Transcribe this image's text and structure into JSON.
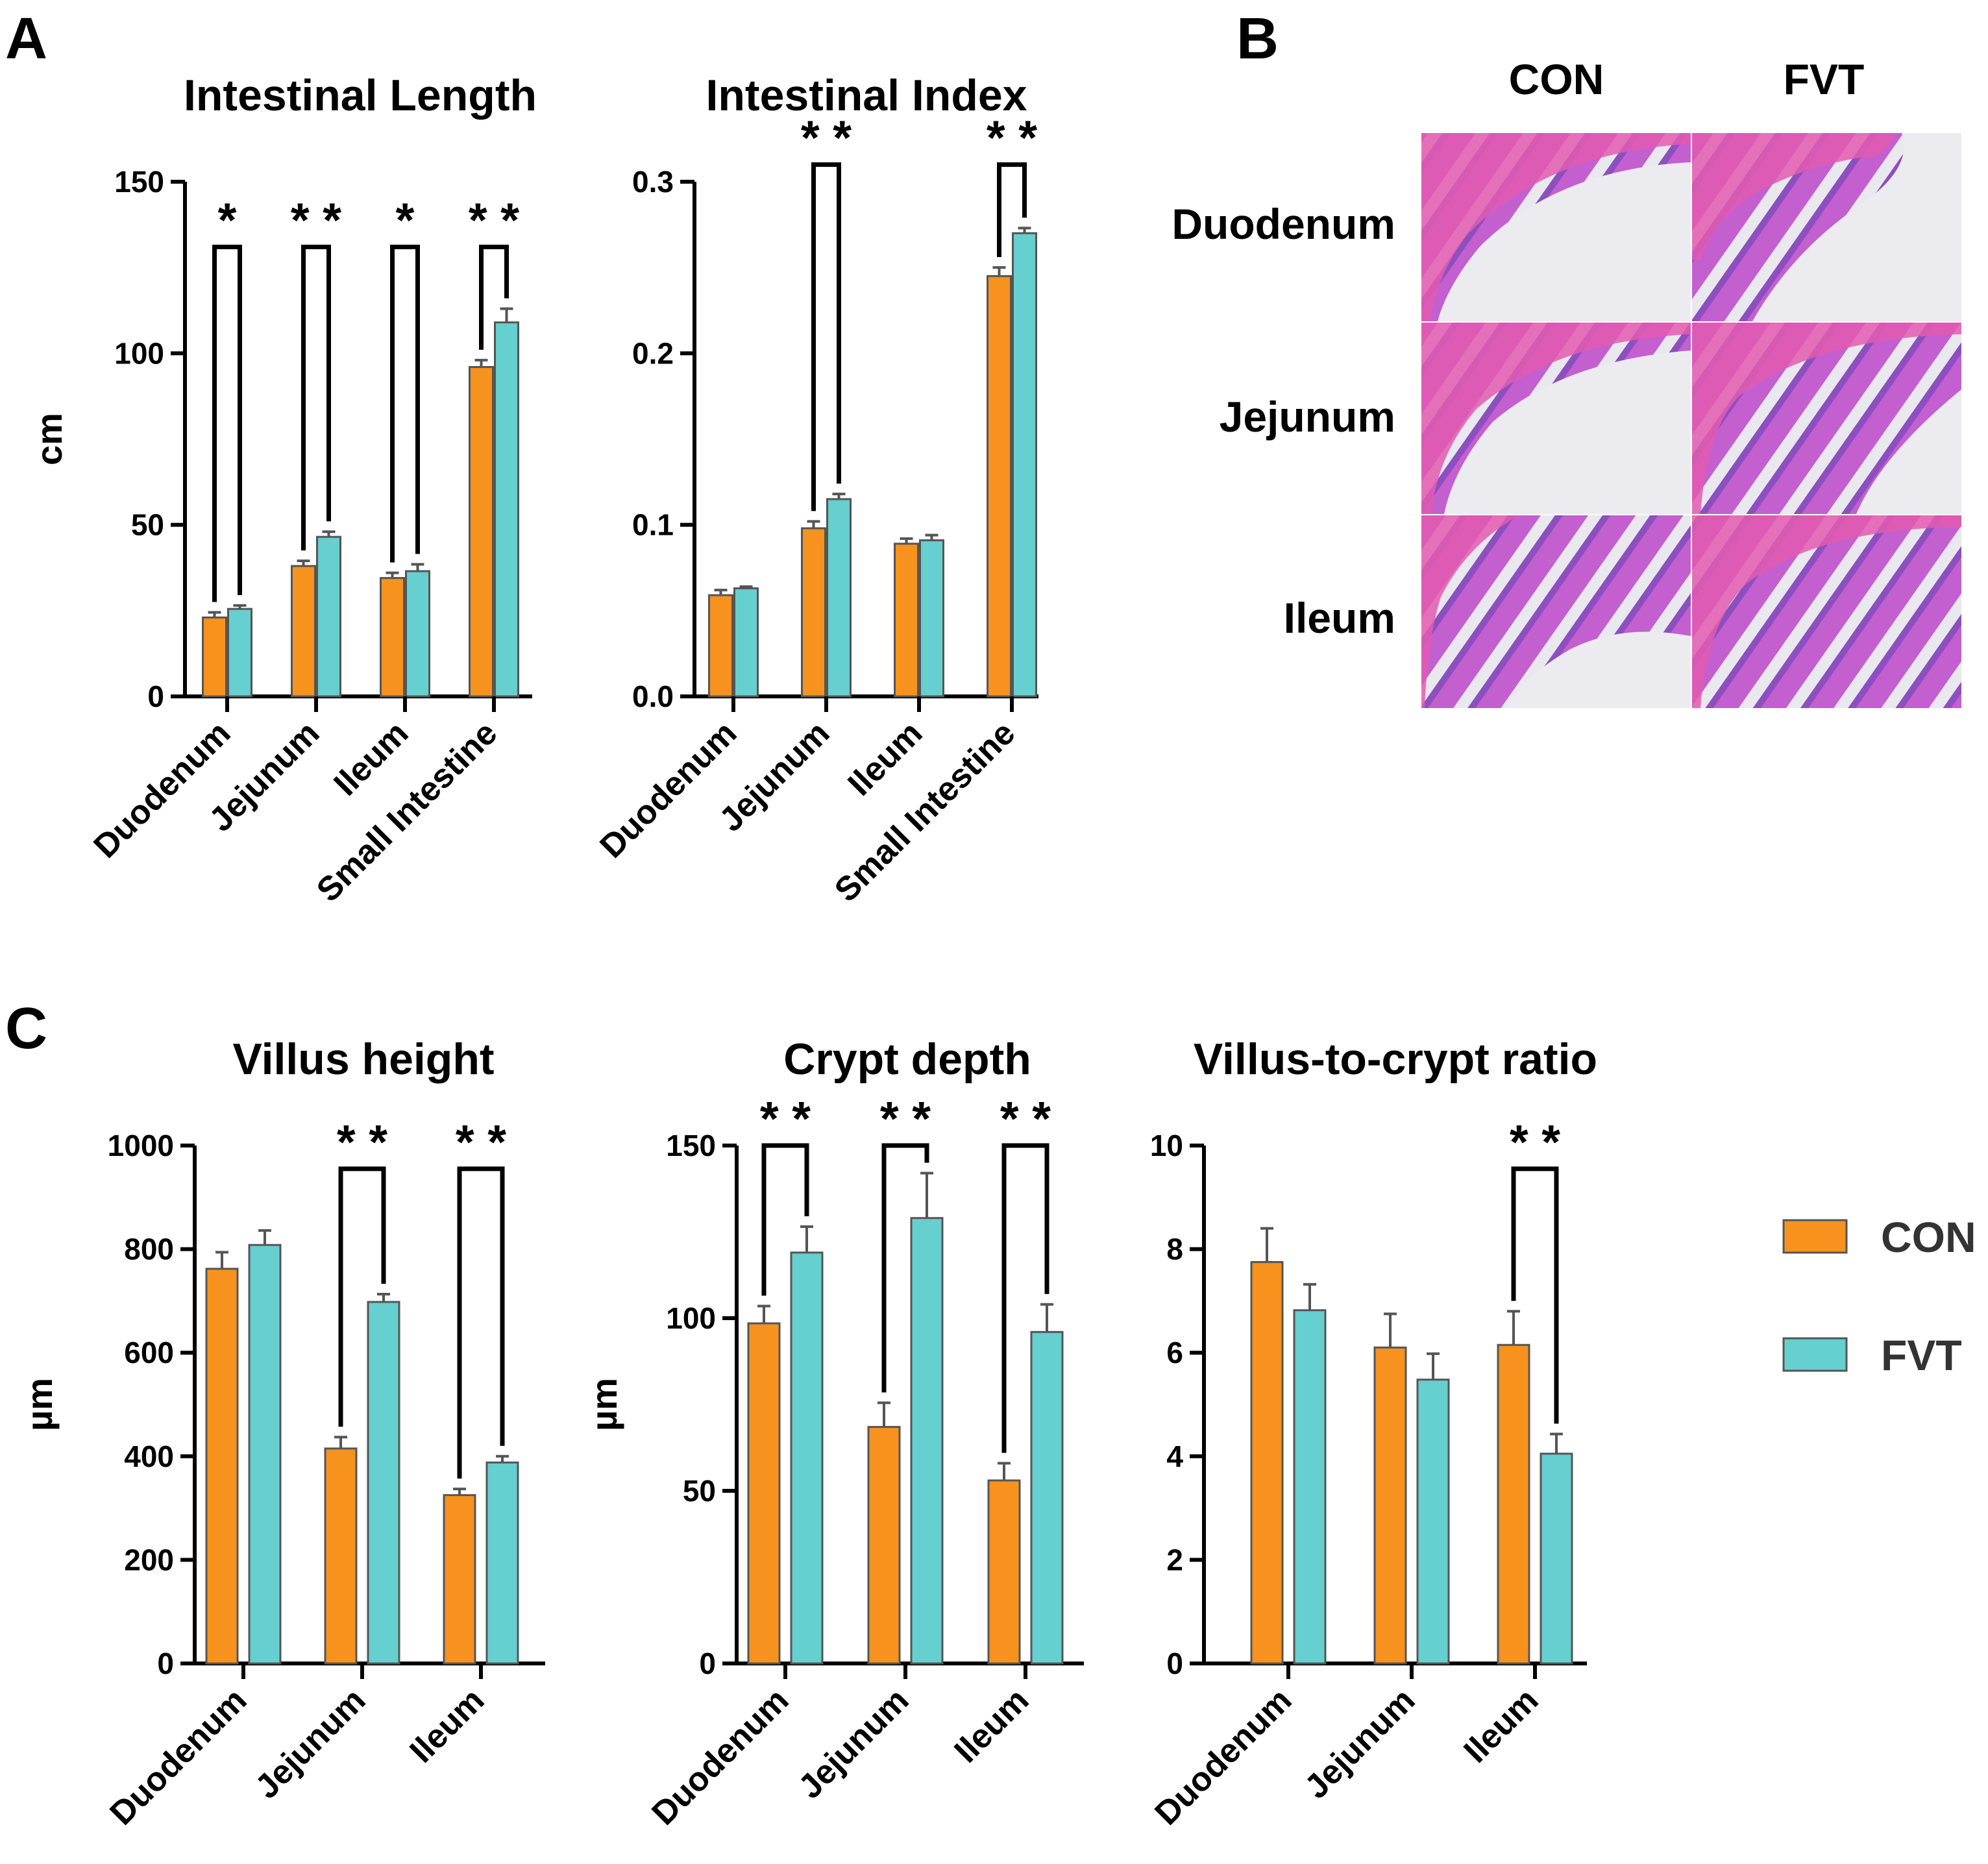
{
  "colors": {
    "con": "#f7921e",
    "fvt": "#66cfcf",
    "con_stroke": "#555555",
    "fvt_stroke": "#555555",
    "err": "#555555"
  },
  "panels": {
    "a": "A",
    "b": "B",
    "c": "C"
  },
  "legend": [
    {
      "label": "CON",
      "color": "#f7921e"
    },
    {
      "label": "FVT",
      "color": "#66cfcf"
    }
  ],
  "histology": {
    "columns": [
      "CON",
      "FVT"
    ],
    "rows": [
      "Duodenum",
      "Jejunum",
      "Ileum"
    ]
  },
  "chart_data": [
    {
      "id": "len",
      "type": "bar",
      "title": "Intestinal Length",
      "ylabel": "cm",
      "ylim": [
        0,
        150
      ],
      "yticks": [
        0,
        50,
        100,
        150
      ],
      "ytick_labels": [
        "0",
        "50",
        "100",
        "150"
      ],
      "categories": [
        "Duodenum",
        "Jejunum",
        "Ileum",
        "Small Intestine"
      ],
      "series": [
        {
          "name": "CON",
          "values": [
            23,
            38,
            34.5,
            96
          ],
          "errors": [
            1.5,
            1.5,
            1.5,
            2
          ]
        },
        {
          "name": "FVT",
          "values": [
            25.5,
            46.5,
            36.5,
            109
          ],
          "errors": [
            1,
            1.5,
            2,
            4
          ]
        }
      ],
      "significance": [
        {
          "category": 0,
          "label": "*",
          "top": 131
        },
        {
          "category": 1,
          "label": "**",
          "top": 131
        },
        {
          "category": 2,
          "label": "*",
          "top": 131
        },
        {
          "category": 3,
          "label": "**",
          "top": 131
        }
      ]
    },
    {
      "id": "idx",
      "type": "bar",
      "title": "Intestinal Index",
      "ylabel": "",
      "ylim": [
        0,
        0.3
      ],
      "yticks": [
        0,
        0.1,
        0.2,
        0.3
      ],
      "ytick_labels": [
        "0.0",
        "0.1",
        "0.2",
        "0.3"
      ],
      "categories": [
        "Duodenum",
        "Jejunum",
        "Ileum",
        "Small Intestine"
      ],
      "series": [
        {
          "name": "CON",
          "values": [
            0.059,
            0.098,
            0.089,
            0.245
          ],
          "errors": [
            0.003,
            0.004,
            0.003,
            0.005
          ]
        },
        {
          "name": "FVT",
          "values": [
            0.063,
            0.115,
            0.091,
            0.27
          ],
          "errors": [
            0.001,
            0.003,
            0.003,
            0.003
          ]
        }
      ],
      "significance": [
        {
          "category": 1,
          "label": "**",
          "top": 0.31
        },
        {
          "category": 3,
          "label": "**",
          "top": 0.31
        }
      ]
    },
    {
      "id": "villus",
      "type": "bar",
      "title": "Villus height",
      "ylabel": "µm",
      "ylim": [
        0,
        1000
      ],
      "yticks": [
        0,
        200,
        400,
        600,
        800,
        1000
      ],
      "ytick_labels": [
        "0",
        "200",
        "400",
        "600",
        "800",
        "1000"
      ],
      "categories": [
        "Duodenum",
        "Jejunum",
        "Ileum"
      ],
      "series": [
        {
          "name": "CON",
          "values": [
            762,
            415,
            325
          ],
          "errors": [
            32,
            22,
            12
          ]
        },
        {
          "name": "FVT",
          "values": [
            808,
            698,
            388
          ],
          "errors": [
            28,
            15,
            12
          ]
        }
      ],
      "significance": [
        {
          "category": 1,
          "label": "**",
          "top": 955
        },
        {
          "category": 2,
          "label": "**",
          "top": 955
        }
      ]
    },
    {
      "id": "crypt",
      "type": "bar",
      "title": "Crypt depth",
      "ylabel": "µm",
      "ylim": [
        0,
        150
      ],
      "yticks": [
        0,
        50,
        100,
        150
      ],
      "ytick_labels": [
        "0",
        "50",
        "100",
        "150"
      ],
      "categories": [
        "Duodenum",
        "Jejunum",
        "Ileum"
      ],
      "series": [
        {
          "name": "CON",
          "values": [
            98.5,
            68.5,
            53
          ],
          "errors": [
            5,
            7,
            5
          ]
        },
        {
          "name": "FVT",
          "values": [
            119,
            129,
            96
          ],
          "errors": [
            7.5,
            13,
            8
          ]
        }
      ],
      "significance": [
        {
          "category": 0,
          "label": "**",
          "top": 150
        },
        {
          "category": 1,
          "label": "**",
          "top": 150
        },
        {
          "category": 2,
          "label": "**",
          "top": 150
        }
      ]
    },
    {
      "id": "ratio",
      "type": "bar",
      "title": "Villus-to-crypt ratio",
      "ylabel": "",
      "ylim": [
        0,
        10
      ],
      "yticks": [
        0,
        2,
        4,
        6,
        8,
        10
      ],
      "ytick_labels": [
        "0",
        "2",
        "4",
        "6",
        "8",
        "10"
      ],
      "categories": [
        "Duodenum",
        "Jejunum",
        "Ileum"
      ],
      "series": [
        {
          "name": "CON",
          "values": [
            7.75,
            6.1,
            6.15
          ],
          "errors": [
            0.65,
            0.65,
            0.65
          ]
        },
        {
          "name": "FVT",
          "values": [
            6.82,
            5.48,
            4.05
          ],
          "errors": [
            0.5,
            0.5,
            0.38
          ]
        }
      ],
      "significance": [
        {
          "category": 2,
          "label": "**",
          "top": 9.55
        }
      ]
    }
  ]
}
